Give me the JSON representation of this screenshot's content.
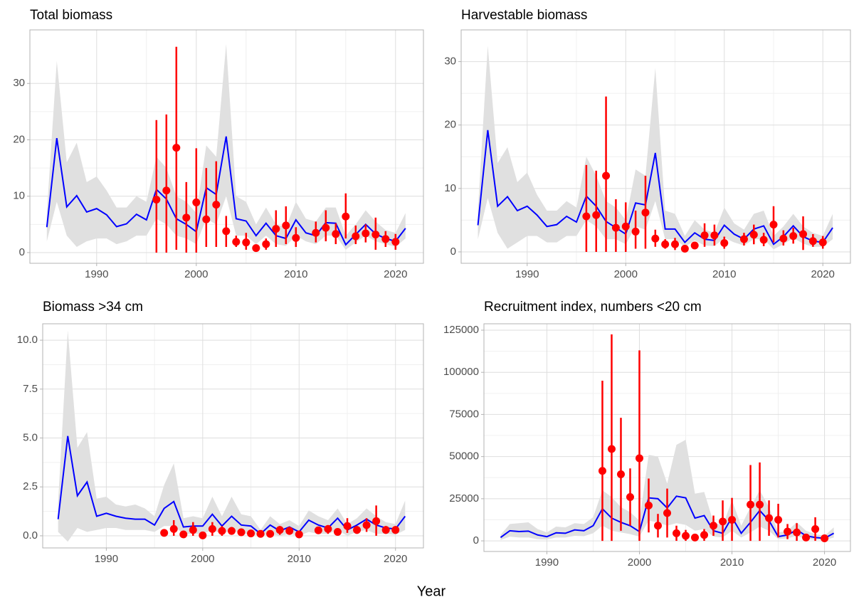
{
  "xlabel": "Year",
  "chart_data": [
    {
      "type": "line",
      "title": "Total biomass",
      "x": [
        1985,
        1986,
        1987,
        1988,
        1989,
        1990,
        1991,
        1992,
        1993,
        1994,
        1995,
        1996,
        1997,
        1998,
        1999,
        2000,
        2001,
        2002,
        2003,
        2004,
        2005,
        2006,
        2007,
        2008,
        2009,
        2010,
        2011,
        2012,
        2013,
        2014,
        2015,
        2016,
        2017,
        2018,
        2019,
        2020,
        2021
      ],
      "series": [
        {
          "color": "#0000ff",
          "values": [
            4.5,
            20.3,
            8.1,
            10.1,
            7.2,
            7.8,
            6.7,
            4.6,
            5.1,
            6.8,
            5.8,
            11.2,
            9.5,
            6.0,
            5.0,
            3.7,
            11.5,
            10.3,
            20.6,
            6.0,
            5.6,
            3.0,
            5.2,
            3.0,
            2.5,
            5.8,
            3.5,
            3.0,
            5.3,
            5.2,
            1.4,
            3.2,
            5.0,
            3.3,
            2.5,
            2.0,
            4.3
          ]
        }
      ],
      "band": {
        "color": "#e0e0e0",
        "upper": [
          7,
          34,
          16,
          19.5,
          12.5,
          13.5,
          11,
          8,
          8,
          10,
          9,
          17,
          15,
          10,
          9,
          7,
          19,
          17,
          37,
          10,
          9,
          5,
          8,
          5,
          4.5,
          9,
          6,
          5.5,
          8,
          8,
          3,
          5,
          7.5,
          5.5,
          4,
          3.5,
          7
        ],
        "lower": [
          2,
          9,
          3,
          1,
          2,
          2.5,
          2.5,
          1.5,
          2,
          3,
          3,
          6,
          5,
          3,
          2.5,
          1.5,
          6,
          5,
          10,
          3,
          3,
          1.5,
          3,
          1.5,
          1.2,
          3,
          2,
          1.5,
          3,
          3,
          0.5,
          1.8,
          3,
          2,
          1.5,
          1,
          2.5
        ]
      },
      "points": {
        "color": "#ff0000",
        "x": [
          1996,
          1997,
          1998,
          1999,
          2000,
          2001,
          2002,
          2003,
          2004,
          2005,
          2006,
          2007,
          2008,
          2009,
          2010,
          2012,
          2013,
          2014,
          2015,
          2016,
          2017,
          2018,
          2019,
          2020
        ],
        "values": [
          9.4,
          11,
          18.6,
          6.2,
          8.9,
          5.9,
          8.5,
          3.8,
          1.9,
          1.8,
          0.8,
          1.5,
          4.2,
          4.8,
          2.6,
          3.5,
          4.4,
          3.3,
          6.4,
          2.9,
          3.4,
          3.2,
          2.4,
          1.9
        ],
        "lower": [
          0,
          0,
          0.5,
          0,
          0,
          1,
          1,
          1,
          1,
          0.5,
          0.5,
          0.5,
          1,
          1.5,
          1,
          1.8,
          2,
          1.5,
          2.5,
          1.5,
          1.8,
          0.5,
          1,
          0.5
        ],
        "upper": [
          23.5,
          24.5,
          36.5,
          12.5,
          18.5,
          15,
          16.2,
          6.5,
          3,
          3.5,
          1.2,
          2.5,
          7.5,
          8.2,
          4.5,
          5.5,
          7.5,
          5.2,
          10.5,
          4.8,
          5,
          6.2,
          3.8,
          3.3
        ]
      },
      "xlim": [
        1983.3,
        2022.8
      ],
      "ylim": [
        -1.9,
        39.5
      ],
      "xticks": [
        1990,
        2000,
        2010,
        2020
      ],
      "yticks": [
        0,
        10,
        20,
        30
      ],
      "grid": true
    },
    {
      "type": "line",
      "title": "Harvestable biomass",
      "x": [
        1985,
        1986,
        1987,
        1988,
        1989,
        1990,
        1991,
        1992,
        1993,
        1994,
        1995,
        1996,
        1997,
        1998,
        1999,
        2000,
        2001,
        2002,
        2003,
        2004,
        2005,
        2006,
        2007,
        2008,
        2009,
        2010,
        2011,
        2012,
        2013,
        2014,
        2015,
        2016,
        2017,
        2018,
        2019,
        2020,
        2021
      ],
      "series": [
        {
          "color": "#0000ff",
          "values": [
            4.2,
            19.2,
            7.2,
            8.7,
            6.5,
            7.2,
            5.8,
            4.0,
            4.3,
            5.6,
            4.7,
            8.8,
            7.2,
            4.8,
            3.8,
            2.8,
            7.7,
            7.4,
            15.6,
            3.6,
            3.6,
            1.5,
            3.0,
            2.0,
            1.8,
            4.2,
            2.8,
            2.0,
            3.6,
            4.1,
            1.2,
            2.4,
            4.1,
            2.4,
            1.7,
            1.5,
            3.8
          ]
        }
      ],
      "band": {
        "color": "#e0e0e0",
        "upper": [
          6.5,
          32.5,
          14,
          16.5,
          11,
          12.5,
          9,
          6.5,
          6.5,
          8,
          7,
          15,
          12,
          8,
          7,
          5,
          13,
          12,
          29,
          6.5,
          6,
          2.5,
          5,
          3.5,
          3,
          7,
          4.5,
          3.5,
          6,
          6.5,
          2.5,
          4,
          6,
          4,
          3,
          2.5,
          6
        ],
        "lower": [
          2,
          8.5,
          3,
          0.5,
          1.5,
          2.5,
          2.5,
          1.5,
          1.5,
          2.5,
          2.5,
          5,
          4,
          2,
          2,
          1.2,
          4,
          3.5,
          8,
          2,
          2,
          0.8,
          1.8,
          1,
          0.9,
          2.2,
          1.5,
          1,
          2,
          2,
          0.4,
          1.2,
          2.2,
          1.3,
          0.8,
          0.8,
          2
        ]
      },
      "points": {
        "color": "#ff0000",
        "x": [
          1996,
          1997,
          1998,
          1999,
          2000,
          2001,
          2002,
          2003,
          2004,
          2005,
          2006,
          2007,
          2008,
          2009,
          2010,
          2012,
          2013,
          2014,
          2015,
          2016,
          2017,
          2018,
          2019,
          2020
        ],
        "values": [
          5.6,
          5.8,
          12,
          3.8,
          4.0,
          3.2,
          6.2,
          2.1,
          1.2,
          1.2,
          0.5,
          1.0,
          2.6,
          2.6,
          1.4,
          2.0,
          2.7,
          1.9,
          4.3,
          2.1,
          2.5,
          2.8,
          1.7,
          1.5
        ],
        "lower": [
          0,
          0,
          0,
          0,
          0,
          0.5,
          0.5,
          0.8,
          0.5,
          0.3,
          0.2,
          0.5,
          0.8,
          1,
          0.5,
          1,
          1.2,
          0.9,
          1.5,
          1,
          1.3,
          0.3,
          0.8,
          0.5
        ],
        "upper": [
          13.7,
          12.8,
          24.5,
          8.3,
          7.8,
          6.5,
          12,
          3.5,
          2,
          2.2,
          0.8,
          1.5,
          4.5,
          4.3,
          2.4,
          3,
          4.3,
          3,
          7.2,
          3.4,
          3.8,
          5.6,
          2.8,
          2.5
        ]
      },
      "xlim": [
        1983.3,
        2022.8
      ],
      "ylim": [
        -1.8,
        35
      ],
      "xticks": [
        1990,
        2000,
        2010,
        2020
      ],
      "yticks": [
        0,
        10,
        20,
        30
      ],
      "grid": true
    },
    {
      "type": "line",
      "title": "Biomass >34 cm",
      "x": [
        1985,
        1986,
        1987,
        1988,
        1989,
        1990,
        1991,
        1992,
        1993,
        1994,
        1995,
        1996,
        1997,
        1998,
        1999,
        2000,
        2001,
        2002,
        2003,
        2004,
        2005,
        2006,
        2007,
        2008,
        2009,
        2010,
        2011,
        2012,
        2013,
        2014,
        2015,
        2016,
        2017,
        2018,
        2019,
        2020,
        2021
      ],
      "series": [
        {
          "color": "#0000ff",
          "values": [
            0.85,
            5.1,
            2.05,
            2.75,
            1.0,
            1.15,
            1.0,
            0.9,
            0.85,
            0.85,
            0.55,
            1.4,
            1.75,
            0.45,
            0.5,
            0.5,
            1.1,
            0.5,
            1.0,
            0.55,
            0.5,
            0.1,
            0.55,
            0.25,
            0.45,
            0.2,
            0.8,
            0.55,
            0.4,
            0.9,
            0.3,
            0.55,
            0.85,
            0.55,
            0.4,
            0.35,
            1.0
          ]
        }
      ],
      "band": {
        "color": "#e0e0e0",
        "upper": [
          1.7,
          10.5,
          4.5,
          5.3,
          1.9,
          2.0,
          1.6,
          1.5,
          1.6,
          1.4,
          1.0,
          2.6,
          3.7,
          0.9,
          1.0,
          0.9,
          2.0,
          1.0,
          2.0,
          1.1,
          1.0,
          0.3,
          1.0,
          0.6,
          0.8,
          0.5,
          1.3,
          1.0,
          0.8,
          1.4,
          0.6,
          0.9,
          1.4,
          1.0,
          0.7,
          0.6,
          1.8
        ],
        "lower": [
          0.2,
          -0.3,
          0.4,
          0.2,
          0.3,
          0.4,
          0.4,
          0.3,
          0.3,
          0.3,
          0.2,
          0.5,
          0.5,
          0.1,
          0.1,
          0.1,
          0.3,
          0.1,
          0.3,
          0.1,
          0.1,
          0,
          0.1,
          0,
          0.1,
          0,
          0.2,
          0.1,
          0.1,
          0.3,
          0,
          0.2,
          0.3,
          0.1,
          0.1,
          0.05,
          0.3
        ]
      },
      "points": {
        "color": "#ff0000",
        "x": [
          1996,
          1997,
          1998,
          1999,
          2000,
          2001,
          2002,
          2003,
          2004,
          2005,
          2006,
          2007,
          2008,
          2009,
          2010,
          2012,
          2013,
          2014,
          2015,
          2016,
          2017,
          2018,
          2019,
          2020
        ],
        "values": [
          0.15,
          0.35,
          0.07,
          0.3,
          0.02,
          0.35,
          0.25,
          0.25,
          0.18,
          0.12,
          0.1,
          0.1,
          0.3,
          0.25,
          0.07,
          0.28,
          0.35,
          0.2,
          0.5,
          0.3,
          0.55,
          0.75,
          0.3,
          0.3
        ],
        "lower": [
          0.05,
          0,
          0,
          0,
          0,
          0,
          0,
          0.05,
          0.05,
          0.02,
          0,
          0,
          0.05,
          0.05,
          0,
          0.1,
          0.1,
          0.05,
          0.15,
          0.1,
          0.2,
          0,
          0.1,
          0.1
        ],
        "upper": [
          0.3,
          0.8,
          0.2,
          0.7,
          0.1,
          0.7,
          0.5,
          0.45,
          0.35,
          0.25,
          0.2,
          0.2,
          0.5,
          0.45,
          0.15,
          0.45,
          0.55,
          0.35,
          0.9,
          0.5,
          0.9,
          1.55,
          0.5,
          0.5
        ]
      },
      "xlim": [
        1983.4,
        2022.9
      ],
      "ylim": [
        -0.62,
        10.84
      ],
      "xticks": [
        1990,
        2000,
        2010,
        2020
      ],
      "yticks": [
        {
          "value": 0,
          "label": "0.0"
        },
        {
          "value": 2.5,
          "label": "2.5"
        },
        {
          "value": 5,
          "label": "5.0"
        },
        {
          "value": 7.5,
          "label": "7.5"
        },
        {
          "value": 10,
          "label": "10.0"
        }
      ],
      "grid": true
    },
    {
      "type": "line",
      "title": "Recruitment index, numbers <20 cm",
      "x": [
        1985,
        1986,
        1987,
        1988,
        1989,
        1990,
        1991,
        1992,
        1993,
        1994,
        1995,
        1996,
        1997,
        1998,
        1999,
        2000,
        2001,
        2002,
        2003,
        2004,
        2005,
        2006,
        2007,
        2008,
        2009,
        2010,
        2011,
        2012,
        2013,
        2014,
        2015,
        2016,
        2017,
        2018,
        2019,
        2020,
        2021
      ],
      "series": [
        {
          "color": "#0000ff",
          "values": [
            2000,
            6000,
            5500,
            5800,
            3500,
            2500,
            4800,
            4500,
            6500,
            6000,
            9000,
            19000,
            13500,
            11000,
            9000,
            5500,
            25500,
            25000,
            19500,
            26500,
            25500,
            13500,
            15000,
            6000,
            4500,
            14000,
            4500,
            11000,
            18000,
            12000,
            2500,
            3500,
            6500,
            3000,
            2000,
            1500,
            4500
          ]
        }
      ],
      "band": {
        "color": "#e0e0e0",
        "upper": [
          3500,
          10000,
          10500,
          11000,
          7000,
          5000,
          8500,
          8000,
          10500,
          10000,
          14000,
          30000,
          26000,
          20000,
          17000,
          12000,
          51000,
          50000,
          34000,
          57000,
          60000,
          28000,
          29000,
          11000,
          9000,
          24000,
          9000,
          20000,
          30000,
          20000,
          5000,
          6000,
          11000,
          6000,
          4000,
          3000,
          8000
        ],
        "lower": [
          500,
          2500,
          2000,
          2000,
          1000,
          800,
          2000,
          2000,
          3000,
          2800,
          4500,
          9000,
          6000,
          5000,
          4000,
          2500,
          12000,
          11000,
          9000,
          10500,
          9500,
          6000,
          7000,
          2500,
          2000,
          6000,
          2000,
          5000,
          8500,
          6000,
          1000,
          1500,
          3000,
          1000,
          700,
          500,
          2000
        ]
      },
      "points": {
        "color": "#ff0000",
        "x": [
          1996,
          1997,
          1998,
          1999,
          2000,
          2001,
          2002,
          2003,
          2004,
          2005,
          2006,
          2007,
          2008,
          2009,
          2010,
          2012,
          2013,
          2014,
          2015,
          2016,
          2017,
          2018,
          2019,
          2020
        ],
        "values": [
          41500,
          54500,
          39500,
          26000,
          49000,
          21000,
          9000,
          16500,
          4500,
          3000,
          2000,
          3500,
          9000,
          11500,
          12500,
          21500,
          21500,
          13500,
          12500,
          5500,
          5000,
          2000,
          7000,
          1500
        ],
        "lower": [
          0,
          0,
          6000,
          9000,
          0,
          5000,
          2000,
          2000,
          0,
          0,
          0,
          0,
          3000,
          0,
          0,
          0,
          0,
          3000,
          2000,
          1000,
          0,
          0,
          0,
          0
        ],
        "upper": [
          95000,
          122500,
          73000,
          43000,
          113000,
          37000,
          16000,
          31000,
          9000,
          6500,
          4000,
          7000,
          15000,
          24000,
          25500,
          45000,
          46500,
          24000,
          22000,
          10000,
          10500,
          4000,
          14000,
          3000
        ]
      },
      "xlim": [
        1983.2,
        2022.8
      ],
      "ylim": [
        -6300,
        128800
      ],
      "xticks": [
        1990,
        2000,
        2010,
        2020
      ],
      "yticks": [
        0,
        25000,
        50000,
        75000,
        100000,
        125000
      ],
      "grid": true
    }
  ]
}
